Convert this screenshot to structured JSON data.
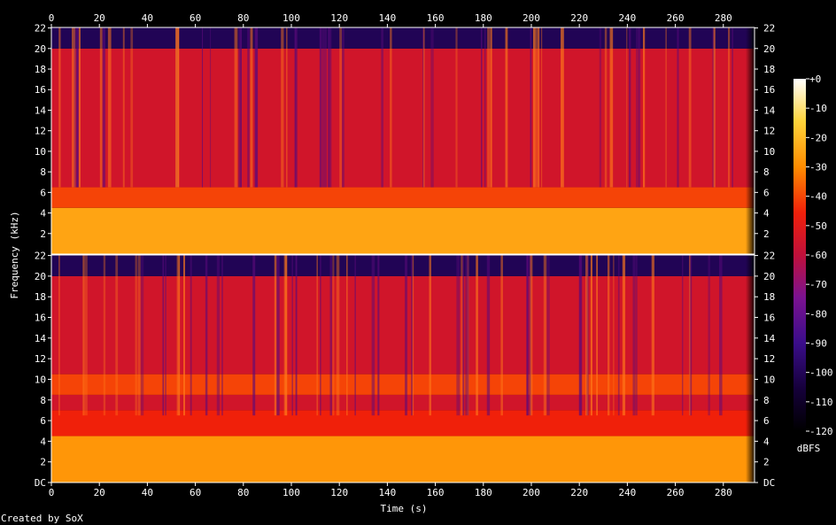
{
  "chart_data": {
    "type": "heatmap",
    "title": "",
    "xlabel": "Time (s)",
    "ylabel": "Frequency (kHz)",
    "x_ticks": [
      "0",
      "20",
      "40",
      "60",
      "80",
      "100",
      "120",
      "140",
      "160",
      "180",
      "200",
      "220",
      "240",
      "260",
      "280"
    ],
    "xlim": [
      0,
      293
    ],
    "channels": [
      {
        "y_ticks": [
          "2",
          "4",
          "6",
          "8",
          "10",
          "12",
          "14",
          "16",
          "18",
          "20",
          "22"
        ],
        "ylim": [
          0,
          22.05
        ],
        "bands": [
          {
            "from_khz": 0,
            "to_khz": 4.5,
            "level_dbfs": -25
          },
          {
            "from_khz": 4.5,
            "to_khz": 6.5,
            "level_dbfs": -40
          },
          {
            "from_khz": 6.5,
            "to_khz": 20,
            "level_dbfs": -55
          },
          {
            "from_khz": 20,
            "to_khz": 22.05,
            "level_dbfs": -100
          }
        ]
      },
      {
        "y_ticks": [
          "DC",
          "2",
          "4",
          "6",
          "8",
          "10",
          "12",
          "14",
          "16",
          "18",
          "20",
          "22"
        ],
        "ylim": [
          0,
          22.05
        ],
        "bands": [
          {
            "from_khz": 0,
            "to_khz": 4.5,
            "level_dbfs": -28
          },
          {
            "from_khz": 4.5,
            "to_khz": 7,
            "level_dbfs": -45
          },
          {
            "from_khz": 7,
            "to_khz": 8.5,
            "level_dbfs": -55
          },
          {
            "from_khz": 8.5,
            "to_khz": 10.5,
            "level_dbfs": -40
          },
          {
            "from_khz": 10.5,
            "to_khz": 20,
            "level_dbfs": -55
          },
          {
            "from_khz": 20,
            "to_khz": 22.05,
            "level_dbfs": -100
          }
        ]
      }
    ],
    "colorbar": {
      "label": "dBFS",
      "ticks": [
        "+0",
        "-10",
        "-20",
        "-30",
        "-40",
        "-50",
        "-60",
        "-70",
        "-80",
        "-90",
        "-100",
        "-110",
        "-120"
      ],
      "range": [
        -120,
        0
      ]
    },
    "grid": false,
    "legend": "colorbar-right"
  },
  "footer": "Created by SoX",
  "colors": {
    "background": "#000000",
    "text": "#ffffff",
    "axis": "#ffffff"
  }
}
